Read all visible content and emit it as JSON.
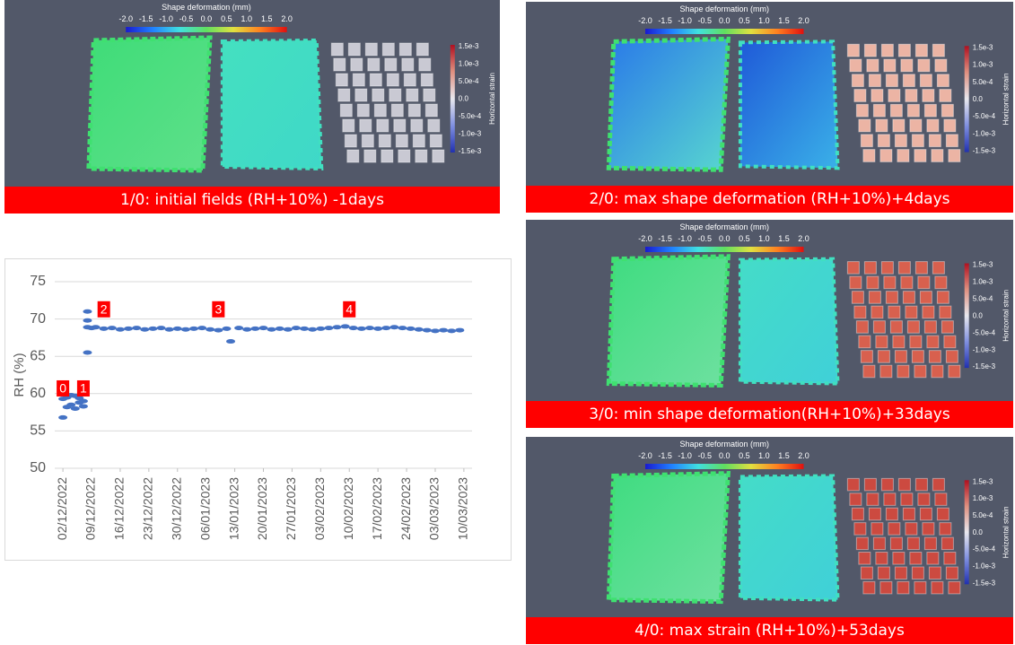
{
  "panels": {
    "deformation_colorbar": {
      "title": "Shape deformation (mm)",
      "ticks": [
        "-2.0",
        "-1.5",
        "-1.0",
        "-0.5",
        "0.0",
        "0.5",
        "1.0",
        "1.5",
        "2.0"
      ]
    },
    "strain_colorbar": {
      "title": "Horizontal strain",
      "ticks": [
        "1.5e-3",
        "1.0e-3",
        "5.0e-4",
        "0.0",
        "-5.0e-4",
        "-1.0e-3",
        "-1.5e-3"
      ]
    },
    "captions": [
      "1/0: initial fields (RH+10%) -1days",
      "2/0: max shape deformation (RH+10%)+4days",
      "3/0: min shape deformation(RH+10%)+33days",
      "4/0: max  strain (RH+10%)+53days"
    ]
  },
  "chart_data": {
    "type": "scatter",
    "ylabel": "RH (%)",
    "ylim": [
      50,
      75
    ],
    "yticks": [
      50,
      55,
      60,
      65,
      70,
      75
    ],
    "xlim": [
      "2022-11-30",
      "2023-03-12"
    ],
    "xticks": [
      {
        "value": "2022-12-02",
        "label": "02/12/2022"
      },
      {
        "value": "2022-12-09",
        "label": "09/12/2022"
      },
      {
        "value": "2022-12-16",
        "label": "16/12/2022"
      },
      {
        "value": "2022-12-23",
        "label": "23/12/2022"
      },
      {
        "value": "2022-12-30",
        "label": "30/12/2022"
      },
      {
        "value": "2023-01-06",
        "label": "06/01/2023"
      },
      {
        "value": "2023-01-13",
        "label": "13/01/2023"
      },
      {
        "value": "2023-01-20",
        "label": "20/01/2023"
      },
      {
        "value": "2023-01-27",
        "label": "27/01/2023"
      },
      {
        "value": "2023-02-03",
        "label": "03/02/2023"
      },
      {
        "value": "2023-02-10",
        "label": "10/02/2023"
      },
      {
        "value": "2023-02-17",
        "label": "17/02/2023"
      },
      {
        "value": "2023-02-24",
        "label": "24/02/2023"
      },
      {
        "value": "2023-03-03",
        "label": "03/03/2023"
      },
      {
        "value": "2023-03-10",
        "label": "10/03/2023"
      }
    ],
    "color": "#4472c4",
    "x": [
      "2022-12-02",
      "2022-12-02",
      "2022-12-03",
      "2022-12-03",
      "2022-12-04",
      "2022-12-04",
      "2022-12-05",
      "2022-12-05",
      "2022-12-06",
      "2022-12-06",
      "2022-12-07",
      "2022-12-07",
      "2022-12-08",
      "2022-12-08",
      "2022-12-08",
      "2022-12-08",
      "2022-12-09",
      "2022-12-10",
      "2022-12-12",
      "2022-12-14",
      "2022-12-16",
      "2022-12-18",
      "2022-12-20",
      "2022-12-22",
      "2022-12-24",
      "2022-12-26",
      "2022-12-28",
      "2022-12-30",
      "2023-01-01",
      "2023-01-03",
      "2023-01-05",
      "2023-01-07",
      "2023-01-09",
      "2023-01-11",
      "2023-01-12",
      "2023-01-14",
      "2023-01-16",
      "2023-01-18",
      "2023-01-20",
      "2023-01-22",
      "2023-01-24",
      "2023-01-26",
      "2023-01-28",
      "2023-01-30",
      "2023-02-01",
      "2023-02-03",
      "2023-02-05",
      "2023-02-07",
      "2023-02-09",
      "2023-02-11",
      "2023-02-13",
      "2023-02-15",
      "2023-02-17",
      "2023-02-19",
      "2023-02-21",
      "2023-02-23",
      "2023-02-25",
      "2023-02-27",
      "2023-03-01",
      "2023-03-03",
      "2023-03-05",
      "2023-03-07",
      "2023-03-09"
    ],
    "values": [
      59.3,
      56.8,
      58.2,
      59.5,
      58.5,
      59.8,
      58.0,
      59.7,
      58.8,
      59.4,
      58.3,
      59.0,
      65.5,
      71.0,
      69.8,
      68.9,
      68.8,
      68.9,
      68.7,
      68.8,
      68.6,
      68.7,
      68.8,
      68.6,
      68.7,
      68.8,
      68.6,
      68.7,
      68.6,
      68.7,
      68.8,
      68.6,
      68.5,
      68.7,
      67.0,
      68.8,
      68.6,
      68.7,
      68.8,
      68.6,
      68.7,
      68.6,
      68.8,
      68.7,
      68.6,
      68.7,
      68.8,
      68.9,
      69.0,
      68.8,
      68.7,
      68.8,
      68.7,
      68.8,
      68.9,
      68.8,
      68.7,
      68.6,
      68.5,
      68.4,
      68.5,
      68.4,
      68.5
    ],
    "annotations": [
      {
        "text": "0",
        "x": "2022-12-02",
        "y": 60.7
      },
      {
        "text": "1",
        "x": "2022-12-07",
        "y": 60.7
      },
      {
        "text": "2",
        "x": "2022-12-12",
        "y": 71.3
      },
      {
        "text": "3",
        "x": "2023-01-09",
        "y": 71.3
      },
      {
        "text": "4",
        "x": "2023-02-10",
        "y": 71.3
      }
    ]
  }
}
